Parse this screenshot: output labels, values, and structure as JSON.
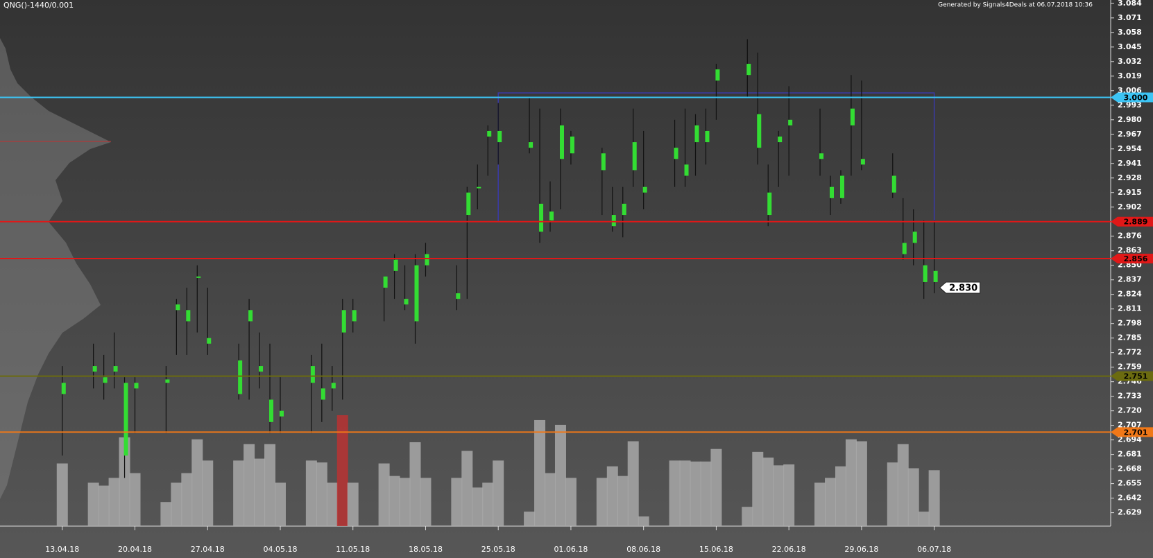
{
  "chart_data": {
    "type": "candlestick",
    "title": "QNG()-1440/0.001",
    "subtitle": "Generated by Signals4Deals at 06.07.2018 10:36",
    "x": [
      "13.04.18",
      "16.04.18",
      "17.04.18",
      "18.04.18",
      "19.04.18",
      "20.04.18",
      "23.04.18",
      "24.04.18",
      "25.04.18",
      "26.04.18",
      "27.04.18",
      "30.04.18",
      "01.05.18",
      "02.05.18",
      "03.05.18",
      "04.05.18",
      "07.05.18",
      "08.05.18",
      "09.05.18",
      "10.05.18",
      "11.05.18",
      "14.05.18",
      "15.05.18",
      "16.05.18",
      "17.05.18",
      "18.05.18",
      "21.05.18",
      "22.05.18",
      "23.05.18",
      "24.05.18",
      "25.05.18",
      "28.05.18",
      "29.05.18",
      "30.05.18",
      "31.05.18",
      "01.06.18",
      "04.06.18",
      "05.06.18",
      "06.06.18",
      "07.06.18",
      "08.06.18",
      "11.06.18",
      "12.06.18",
      "13.06.18",
      "14.06.18",
      "15.06.18",
      "18.06.18",
      "19.06.18",
      "20.06.18",
      "21.06.18",
      "22.06.18",
      "25.06.18",
      "26.06.18",
      "27.06.18",
      "28.06.18",
      "29.06.18",
      "02.07.18",
      "03.07.18",
      "04.07.18",
      "05.07.18",
      "06.07.18"
    ],
    "open": [
      2.745,
      2.755,
      2.745,
      2.76,
      2.745,
      2.74,
      2.745,
      2.81,
      2.81,
      2.84,
      2.785,
      2.765,
      2.81,
      2.76,
      2.73,
      2.72,
      2.76,
      2.73,
      2.745,
      2.81,
      2.81,
      2.84,
      2.855,
      2.82,
      2.85,
      2.86,
      2.825,
      2.915,
      2.92,
      2.97,
      2.97,
      2.96,
      2.905,
      2.898,
      2.975,
      2.965,
      2.95,
      2.895,
      2.905,
      2.96,
      2.92,
      2.955,
      2.94,
      2.975,
      2.97,
      3.025,
      3.03,
      2.985,
      2.915,
      2.965,
      2.98,
      2.95,
      2.92,
      2.93,
      2.99,
      2.945,
      2.93,
      2.87,
      2.88,
      2.85,
      2.845
    ],
    "high": [
      2.76,
      2.78,
      2.77,
      2.79,
      2.75,
      2.75,
      2.76,
      2.82,
      2.83,
      2.85,
      2.83,
      2.78,
      2.82,
      2.79,
      2.78,
      2.75,
      2.77,
      2.78,
      2.76,
      2.82,
      2.82,
      2.84,
      2.86,
      2.85,
      2.86,
      2.87,
      2.85,
      2.92,
      2.94,
      2.975,
      2.995,
      3.0,
      2.99,
      2.925,
      2.99,
      2.97,
      2.955,
      2.92,
      2.92,
      2.99,
      2.97,
      2.98,
      2.99,
      2.985,
      2.99,
      3.03,
      3.052,
      3.04,
      2.94,
      2.97,
      3.01,
      2.99,
      2.93,
      2.935,
      3.02,
      3.015,
      2.95,
      2.91,
      2.9,
      2.89,
      2.89
    ],
    "low": [
      2.68,
      2.74,
      2.73,
      2.74,
      2.66,
      2.7,
      2.7,
      2.77,
      2.77,
      2.79,
      2.77,
      2.73,
      2.73,
      2.74,
      2.7,
      2.7,
      2.7,
      2.71,
      2.72,
      2.73,
      2.79,
      2.8,
      2.82,
      2.81,
      2.78,
      2.84,
      2.81,
      2.82,
      2.9,
      2.93,
      2.94,
      2.95,
      2.87,
      2.88,
      2.9,
      2.94,
      2.895,
      2.88,
      2.875,
      2.92,
      2.9,
      2.92,
      2.92,
      2.93,
      2.94,
      2.98,
      3.0,
      2.94,
      2.885,
      2.92,
      2.93,
      2.93,
      2.895,
      2.905,
      2.93,
      2.935,
      2.91,
      2.855,
      2.85,
      2.82,
      2.825
    ],
    "close": [
      2.735,
      2.76,
      2.75,
      2.755,
      2.68,
      2.745,
      2.748,
      2.815,
      2.8,
      2.84,
      2.78,
      2.735,
      2.8,
      2.755,
      2.71,
      2.715,
      2.745,
      2.74,
      2.74,
      2.79,
      2.8,
      2.83,
      2.845,
      2.815,
      2.8,
      2.85,
      2.82,
      2.895,
      2.92,
      2.965,
      2.96,
      2.955,
      2.88,
      2.89,
      2.945,
      2.95,
      2.935,
      2.885,
      2.895,
      2.935,
      2.915,
      2.945,
      2.93,
      2.96,
      2.96,
      3.015,
      3.02,
      2.955,
      2.895,
      2.96,
      2.975,
      2.945,
      2.91,
      2.91,
      2.975,
      2.94,
      2.915,
      2.86,
      2.87,
      2.835,
      2.835
    ],
    "volume": [
      65,
      45,
      42,
      50,
      92,
      55,
      25,
      45,
      55,
      90,
      68,
      68,
      85,
      70,
      85,
      45,
      68,
      66,
      45,
      115,
      45,
      65,
      52,
      50,
      87,
      50,
      50,
      78,
      40,
      45,
      68,
      15,
      110,
      55,
      105,
      50,
      50,
      62,
      52,
      88,
      10,
      68,
      68,
      67,
      67,
      80,
      20,
      77,
      71,
      63,
      64,
      45,
      50,
      62,
      90,
      88,
      66,
      85,
      60,
      15,
      58
    ],
    "wick_color": "#111111",
    "body_color": "#33dd33",
    "volume_color": "#a8a8a8",
    "volume_highlight": {
      "index": 19,
      "color": "#b83232"
    },
    "xlim": [
      "07.04.18",
      "23.07.18"
    ],
    "xticks": [
      "13.04.18",
      "20.04.18",
      "27.04.18",
      "04.05.18",
      "11.05.18",
      "18.05.18",
      "25.05.18",
      "01.06.18",
      "08.06.18",
      "15.06.18",
      "22.06.18",
      "29.06.18",
      "06.07.18"
    ],
    "ylim": [
      2.617,
      3.087
    ],
    "yticks": [
      2.629,
      2.642,
      2.655,
      2.668,
      2.681,
      2.694,
      2.707,
      {
        "value": 2.72,
        "label": "2.720"
      },
      2.733,
      2.746,
      2.759,
      2.772,
      2.785,
      2.798,
      2.811,
      2.824,
      2.837,
      {
        "value": 2.85,
        "label": "2.850"
      },
      2.863,
      2.876,
      2.889,
      2.902,
      2.915,
      2.928,
      2.941,
      2.954,
      2.967,
      {
        "value": 2.98,
        "label": "2.980"
      },
      2.993,
      3.006,
      3.019,
      3.032,
      3.045,
      3.058,
      3.071,
      3.084
    ],
    "levels": [
      {
        "value": 3,
        "label": "3.000",
        "color": "#3cc4f4"
      },
      {
        "value": 2.889,
        "color": "#e01818"
      },
      {
        "value": 2.856,
        "color": "#e01818"
      },
      {
        "value": 2.751,
        "color": "#6b6b10"
      },
      {
        "value": 2.701,
        "color": "#f07818"
      }
    ],
    "current_price": {
      "value": 2.83,
      "label": "2.830"
    },
    "range_box": {
      "x": [
        "25.05.18",
        "06.07.18"
      ],
      "y": [
        2.889,
        3.004
      ],
      "color": "#3a3aa8"
    }
  }
}
